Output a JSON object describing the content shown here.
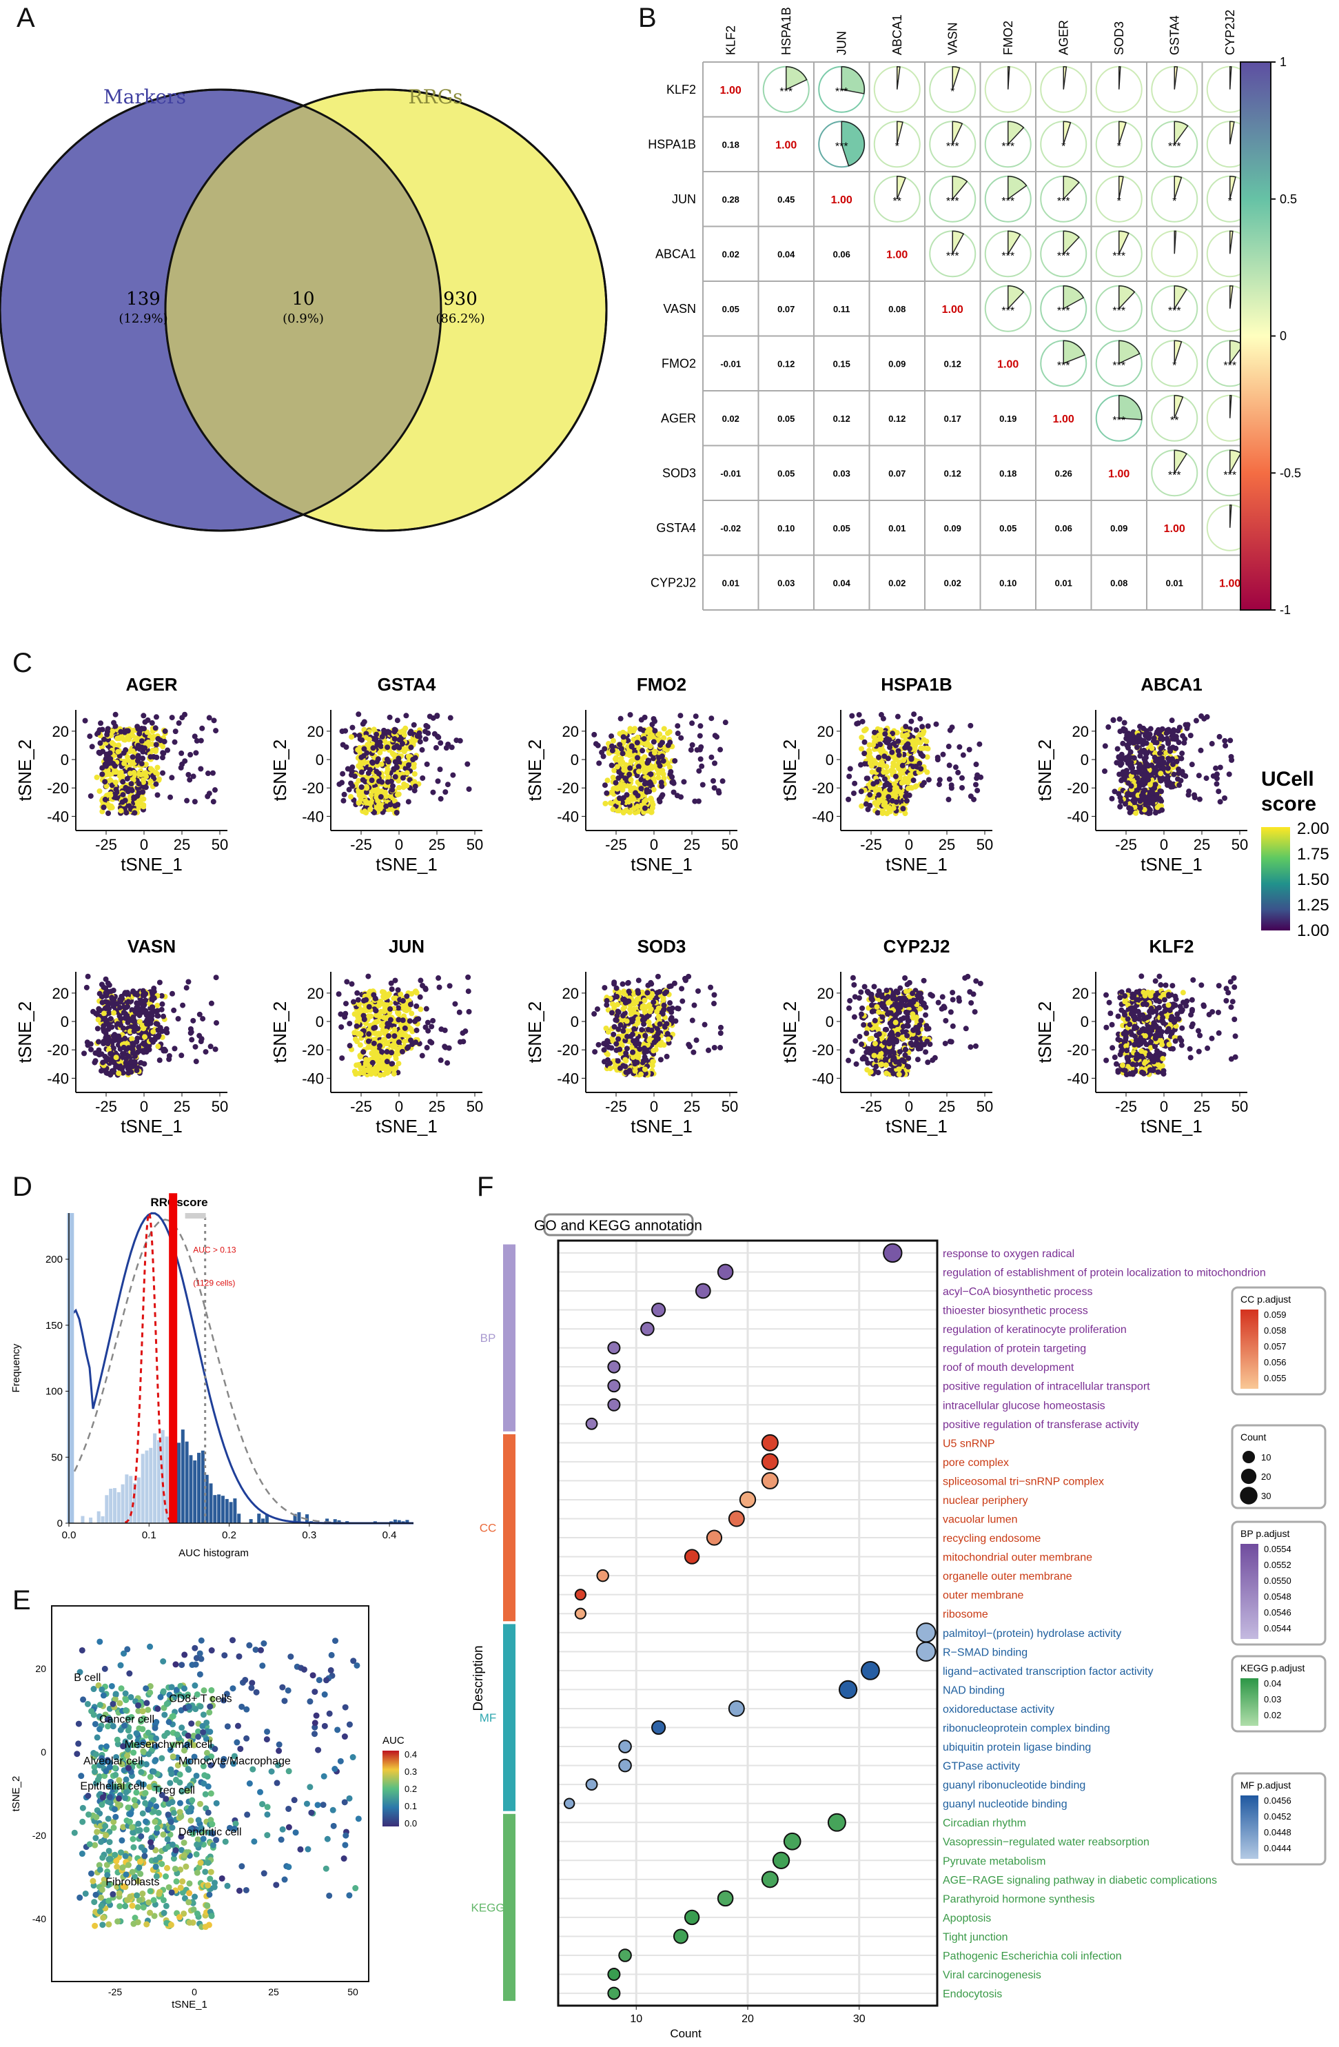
{
  "panels": {
    "A": "A",
    "B": "B",
    "C": "C",
    "D": "D",
    "E": "E",
    "F": "F"
  },
  "venn": {
    "left_label": "Markers",
    "right_label": "RRGs",
    "left_count": "139",
    "left_pct": "(12.9%)",
    "mid_count": "10",
    "mid_pct": "(0.9%)",
    "right_count": "930",
    "right_pct": "(86.2%)",
    "colors": {
      "left": "#6b6bb5",
      "right": "#f2f07e",
      "mid": "#b7b37a"
    }
  },
  "corr": {
    "genes": [
      "KLF2",
      "HSPA1B",
      "JUN",
      "ABCA1",
      "VASN",
      "FMO2",
      "AGER",
      "SOD3",
      "GSTA4",
      "CYP2J2"
    ],
    "lower": [
      [],
      [
        "0.18"
      ],
      [
        "0.28",
        "0.45"
      ],
      [
        "0.02",
        "0.04",
        "0.06"
      ],
      [
        "0.05",
        "0.07",
        "0.11",
        "0.08"
      ],
      [
        "-0.01",
        "0.12",
        "0.15",
        "0.09",
        "0.12"
      ],
      [
        "0.02",
        "0.05",
        "0.12",
        "0.12",
        "0.17",
        "0.19"
      ],
      [
        "-0.01",
        "0.05",
        "0.03",
        "0.07",
        "0.12",
        "0.18",
        "0.26"
      ],
      [
        "-0.02",
        "0.10",
        "0.05",
        "0.01",
        "0.09",
        "0.05",
        "0.06",
        "0.09"
      ],
      [
        "0.01",
        "0.03",
        "0.04",
        "0.02",
        "0.02",
        "0.10",
        "0.01",
        "0.08",
        "0.01"
      ]
    ],
    "diag_label": "1.00",
    "sig": "***",
    "upper_stars": [
      [
        "",
        "***",
        "***",
        "",
        "*",
        "",
        "",
        "",
        "",
        ""
      ],
      [
        "",
        "",
        "***",
        "*",
        "***",
        "***",
        "*",
        "*",
        "***",
        ""
      ],
      [
        "",
        "",
        "",
        "**",
        "***",
        "***",
        "***",
        "*",
        "*",
        "*"
      ],
      [
        "",
        "",
        "",
        "",
        "***",
        "***",
        "***",
        "***",
        "",
        ""
      ],
      [
        "",
        "",
        "",
        "",
        "",
        "***",
        "***",
        "***",
        "***",
        ""
      ],
      [
        "",
        "",
        "",
        "",
        "",
        "",
        "***",
        "***",
        "*",
        "***"
      ],
      [
        "",
        "",
        "",
        "",
        "",
        "",
        "",
        "***",
        "**",
        ""
      ],
      [
        "",
        "",
        "",
        "",
        "",
        "",
        "",
        "",
        "***",
        "***"
      ],
      [
        "",
        "",
        "",
        "",
        "",
        "",
        "",
        "",
        "",
        ""
      ],
      [
        "",
        "",
        "",
        "",
        "",
        "",
        "",
        "",
        "",
        ""
      ]
    ],
    "colorbar_ticks": [
      "1",
      "0.5",
      "0",
      "-0.5",
      "-1"
    ]
  },
  "umap": {
    "genes_row1": [
      "AGER",
      "GSTA4",
      "FMO2",
      "HSPA1B",
      "ABCA1"
    ],
    "genes_row2": [
      "VASN",
      "JUN",
      "SOD3",
      "CYP2J2",
      "KLF2"
    ],
    "xlabel": "tSNE_1",
    "ylabel": "tSNE_2",
    "xticks": [
      "-25",
      "0",
      "25",
      "50"
    ],
    "yticks": [
      "20",
      "0",
      "-20",
      "-40"
    ],
    "legend_title1": "UCell",
    "legend_title2": "score",
    "legend_ticks": [
      "2.00",
      "1.75",
      "1.50",
      "1.25",
      "1.00"
    ],
    "high_color": "#f1e534",
    "low_color": "#3a1c56"
  },
  "chart_data": [
    {
      "type": "bar",
      "title": "RRGscore",
      "xlabel": "AUC histogram",
      "ylabel": "Frequency",
      "xticks": [
        "0.0",
        "0.1",
        "0.2",
        "0.3",
        "0.4"
      ],
      "yticks": [
        "0",
        "50",
        "100",
        "150",
        "200"
      ],
      "ylim": [
        0,
        235
      ],
      "xlim": [
        0,
        0.43
      ],
      "threshold": 0.13,
      "annotation1": "AUC > 0.13",
      "annotation2": "(1129 cells)"
    },
    {
      "type": "scatter",
      "xlabel": "tSNE_1",
      "ylabel": "tSNE_2",
      "xticks": [
        "-25",
        "0",
        "25",
        "50"
      ],
      "yticks": [
        "20",
        "0",
        "-20",
        "-40"
      ],
      "legend_title": "AUC",
      "legend_ticks": [
        "0.4",
        "0.3",
        "0.2",
        "0.1",
        "0.0"
      ],
      "cell_labels": [
        "B cell",
        "Cancer cell",
        "CD8+ T cells",
        "Mesenchymal cell",
        "Alveolar cell",
        "Monocyte/Macrophage",
        "Epithelial cell",
        "Treg cell",
        "Dendritic cell",
        "Fibroblasts"
      ]
    },
    {
      "type": "scatter",
      "title": "GO and KEGG annotation",
      "xlabel": "Count",
      "ylabel": "Description",
      "xticks": [
        "10",
        "20",
        "30"
      ],
      "groups": [
        "BP",
        "CC",
        "MF",
        "KEGG"
      ],
      "terms": [
        {
          "name": "response to oxygen radical",
          "count": 33,
          "group": "BP",
          "shade": 0.9
        },
        {
          "name": "regulation of establishment of protein localization to mitochondrion",
          "count": 18,
          "group": "BP",
          "shade": 0.85
        },
        {
          "name": "acyl−CoA biosynthetic process",
          "count": 16,
          "group": "BP",
          "shade": 0.8
        },
        {
          "name": "thioester biosynthetic process",
          "count": 12,
          "group": "BP",
          "shade": 0.75
        },
        {
          "name": "regulation of keratinocyte proliferation",
          "count": 11,
          "group": "BP",
          "shade": 0.7
        },
        {
          "name": "regulation of protein targeting",
          "count": 8,
          "group": "BP",
          "shade": 0.65
        },
        {
          "name": "roof of mouth development",
          "count": 8,
          "group": "BP",
          "shade": 0.65
        },
        {
          "name": "positive regulation of intracellular transport",
          "count": 8,
          "group": "BP",
          "shade": 0.65
        },
        {
          "name": "intracellular glucose homeostasis",
          "count": 8,
          "group": "BP",
          "shade": 0.65
        },
        {
          "name": "positive regulation of transferase activity",
          "count": 6,
          "group": "BP",
          "shade": 0.6
        },
        {
          "name": "U5 snRNP",
          "count": 22,
          "group": "CC",
          "shade": 0.9
        },
        {
          "name": "pore complex",
          "count": 22,
          "group": "CC",
          "shade": 0.9
        },
        {
          "name": "spliceosomal tri−snRNP complex",
          "count": 22,
          "group": "CC",
          "shade": 0.3
        },
        {
          "name": "nuclear periphery",
          "count": 20,
          "group": "CC",
          "shade": 0.2
        },
        {
          "name": "vacuolar lumen",
          "count": 19,
          "group": "CC",
          "shade": 0.6
        },
        {
          "name": "recycling endosome",
          "count": 17,
          "group": "CC",
          "shade": 0.4
        },
        {
          "name": "mitochondrial outer membrane",
          "count": 15,
          "group": "CC",
          "shade": 0.95
        },
        {
          "name": "organelle outer membrane",
          "count": 7,
          "group": "CC",
          "shade": 0.3
        },
        {
          "name": "outer membrane",
          "count": 5,
          "group": "CC",
          "shade": 0.9
        },
        {
          "name": "ribosome",
          "count": 5,
          "group": "CC",
          "shade": 0.2
        },
        {
          "name": "palmitoyl−(protein) hydrolase activity",
          "count": 36,
          "group": "MF",
          "shade": 0.2
        },
        {
          "name": "R−SMAD binding",
          "count": 36,
          "group": "MF",
          "shade": 0.2
        },
        {
          "name": "ligand−activated transcription factor activity",
          "count": 31,
          "group": "MF",
          "shade": 0.95
        },
        {
          "name": "NAD binding",
          "count": 29,
          "group": "MF",
          "shade": 0.95
        },
        {
          "name": "oxidoreductase activity",
          "count": 19,
          "group": "MF",
          "shade": 0.3
        },
        {
          "name": "ribonucleoprotein complex binding",
          "count": 12,
          "group": "MF",
          "shade": 0.9
        },
        {
          "name": "ubiquitin protein ligase binding",
          "count": 9,
          "group": "MF",
          "shade": 0.3
        },
        {
          "name": "GTPase activity",
          "count": 9,
          "group": "MF",
          "shade": 0.3
        },
        {
          "name": "guanyl ribonucleotide binding",
          "count": 6,
          "group": "MF",
          "shade": 0.3
        },
        {
          "name": "guanyl nucleotide binding",
          "count": 4,
          "group": "MF",
          "shade": 0.3
        },
        {
          "name": "Circadian rhythm",
          "count": 28,
          "group": "KEGG",
          "shade": 0.8
        },
        {
          "name": "Vasopressin−regulated water reabsorption",
          "count": 24,
          "group": "KEGG",
          "shade": 0.8
        },
        {
          "name": "Pyruvate metabolism",
          "count": 23,
          "group": "KEGG",
          "shade": 0.85
        },
        {
          "name": "AGE−RAGE signaling pathway in diabetic complications",
          "count": 22,
          "group": "KEGG",
          "shade": 0.8
        },
        {
          "name": "Parathyroid hormone synthesis",
          "count": 18,
          "group": "KEGG",
          "shade": 0.75
        },
        {
          "name": "Apoptosis",
          "count": 15,
          "group": "KEGG",
          "shade": 0.9
        },
        {
          "name": "Tight junction",
          "count": 14,
          "group": "KEGG",
          "shade": 0.85
        },
        {
          "name": "Pathogenic Escherichia coli infection",
          "count": 9,
          "group": "KEGG",
          "shade": 0.75
        },
        {
          "name": "Viral carcinogenesis",
          "count": 8,
          "group": "KEGG",
          "shade": 0.9
        },
        {
          "name": "Endocytosis",
          "count": 8,
          "group": "KEGG",
          "shade": 0.8
        }
      ],
      "legends": [
        {
          "title": "CC p.adjust",
          "ticks": [
            "0.059",
            "0.058",
            "0.057",
            "0.056",
            "0.055"
          ]
        },
        {
          "title": "Count",
          "ticks": [
            "10",
            "20",
            "30"
          ]
        },
        {
          "title": "BP p.adjust",
          "ticks": [
            "0.0554",
            "0.0552",
            "0.0550",
            "0.0548",
            "0.0546",
            "0.0544"
          ]
        },
        {
          "title": "KEGG p.adjust",
          "ticks": [
            "0.04",
            "0.03",
            "0.02"
          ]
        },
        {
          "title": "MF p.adjust",
          "ticks": [
            "0.0456",
            "0.0452",
            "0.0448",
            "0.0444"
          ]
        }
      ]
    }
  ]
}
